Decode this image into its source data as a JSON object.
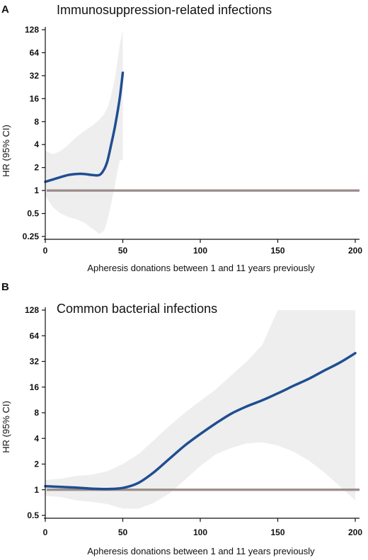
{
  "chart_data": [
    {
      "type": "line",
      "panel": "A",
      "title": "Immunosuppression-related infections",
      "xlabel": "Apheresis donations between 1 and 11 years previously",
      "ylabel": "HR (95% CI)",
      "y_scale": "log2",
      "xlim": [
        0,
        200
      ],
      "ylim": [
        0.25,
        128
      ],
      "x_ticks": [
        0,
        50,
        100,
        150,
        200
      ],
      "y_ticks": [
        0.25,
        0.5,
        1,
        2,
        4,
        8,
        16,
        32,
        64,
        128
      ],
      "y_tick_labels": [
        "0.25",
        "0.5",
        "1",
        "2",
        "4",
        "8",
        "16",
        "32",
        "64",
        "128"
      ],
      "reference_line": 1,
      "series": [
        {
          "x": [
            0,
            5,
            10,
            15,
            20,
            25,
            30,
            35,
            38,
            40,
            42,
            45,
            48,
            50
          ],
          "y": [
            1.3,
            1.4,
            1.5,
            1.6,
            1.65,
            1.65,
            1.6,
            1.6,
            1.9,
            2.4,
            3.6,
            7,
            16,
            35
          ],
          "ci_lower": [
            0.85,
            0.6,
            0.5,
            0.45,
            0.42,
            0.38,
            0.32,
            0.27,
            0.3,
            0.4,
            0.6,
            1.2,
            2.5,
            2.5
          ],
          "ci_upper": [
            3.3,
            3.0,
            3.3,
            4.0,
            5.0,
            6.0,
            7.0,
            8.5,
            10,
            12,
            16,
            30,
            80,
            140
          ]
        }
      ],
      "grid": false,
      "colors": {
        "line": "#1f4e91",
        "ci_band": "#eeeeee",
        "reference": "#9a8c8a"
      }
    },
    {
      "type": "line",
      "panel": "B",
      "title": "Common bacterial infections",
      "xlabel": "Apheresis donations between 1 and 11 years previously",
      "ylabel": "HR (95% CI)",
      "y_scale": "log2",
      "xlim": [
        0,
        200
      ],
      "ylim": [
        0.5,
        128
      ],
      "x_ticks": [
        0,
        50,
        100,
        150,
        200
      ],
      "y_ticks": [
        0.5,
        1,
        2,
        4,
        8,
        16,
        32,
        64,
        128
      ],
      "y_tick_labels": [
        "0.5",
        "1",
        "2",
        "4",
        "8",
        "16",
        "32",
        "64",
        "128"
      ],
      "reference_line": 1,
      "series": [
        {
          "x": [
            0,
            10,
            20,
            30,
            40,
            50,
            60,
            70,
            80,
            90,
            100,
            110,
            120,
            130,
            140,
            150,
            160,
            170,
            180,
            190,
            200
          ],
          "y": [
            1.1,
            1.08,
            1.06,
            1.03,
            1.02,
            1.05,
            1.2,
            1.6,
            2.3,
            3.3,
            4.5,
            6,
            7.8,
            9.5,
            11.2,
            13.5,
            16.5,
            20,
            25,
            31,
            40
          ],
          "ci_lower": [
            0.85,
            0.82,
            0.75,
            0.72,
            0.68,
            0.6,
            0.6,
            0.7,
            0.9,
            1.3,
            1.9,
            2.6,
            3.1,
            3.5,
            3.6,
            3.3,
            2.8,
            2.2,
            1.6,
            1.1,
            0.75
          ],
          "ci_upper": [
            1.3,
            1.35,
            1.45,
            1.5,
            1.65,
            2.0,
            2.6,
            3.8,
            5.6,
            8,
            11,
            15,
            22,
            32,
            50,
            128,
            128,
            128,
            128,
            128,
            128
          ]
        }
      ],
      "grid": false,
      "colors": {
        "line": "#1f4e91",
        "ci_band": "#eeeeee",
        "reference": "#9a8c8a"
      }
    }
  ]
}
